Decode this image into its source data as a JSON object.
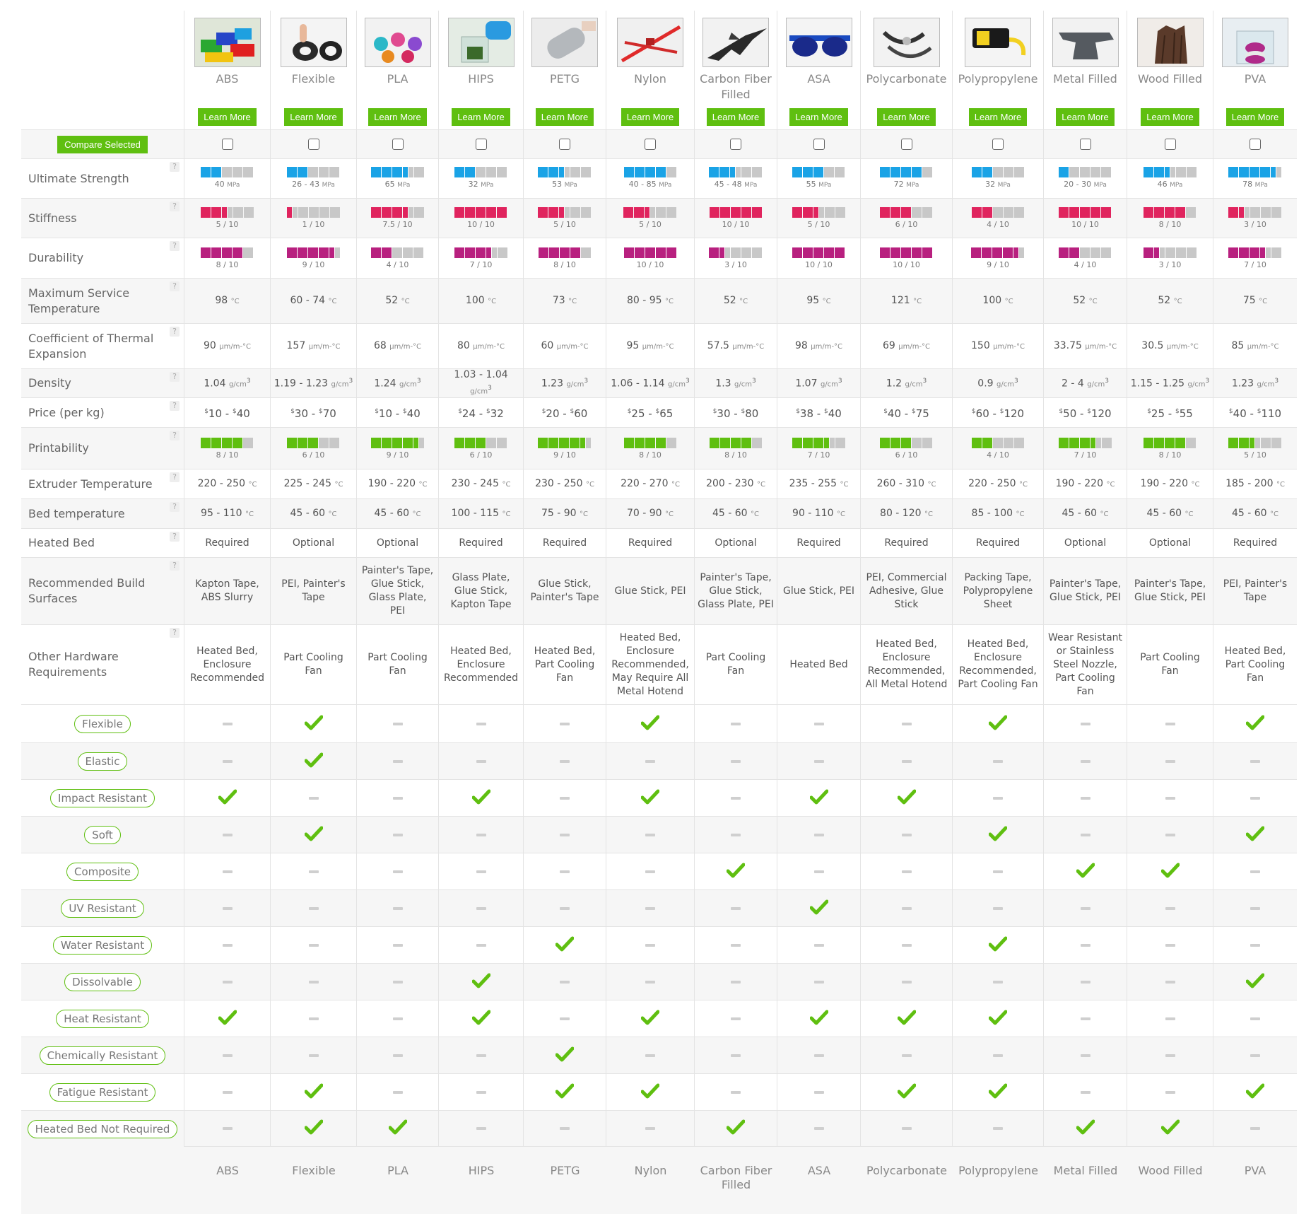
{
  "compare_label": "Compare Selected",
  "learn_more_label": "Learn More",
  "colors": {
    "strength": "#1aa3e6",
    "stiffness": "#e0245e",
    "durability": "#b8207f",
    "printability": "#5fbf10",
    "empty": "#c8c8c8",
    "accent": "#5fbf10"
  },
  "materials": [
    {
      "name": "ABS",
      "icon": "abs-blocks-icon",
      "strength": "40",
      "stiff": "5 / 10",
      "dur": "8 / 10",
      "maxtemp": "98",
      "cte": "90",
      "density": "1.04",
      "price_lo": "10",
      "price_hi": "40",
      "print": "8 / 10",
      "extruder": "220 - 250",
      "bed": "95 - 110",
      "heated": "Required",
      "surfaces": "Kapton Tape, ABS Slurry",
      "hardware": "Heated Bed, Enclosure Recommended",
      "props": [
        0,
        0,
        1,
        0,
        0,
        0,
        0,
        0,
        1,
        0,
        0,
        0
      ]
    },
    {
      "name": "Flexible",
      "icon": "flexible-ring-icon",
      "strength": "26 - 43",
      "stiff": "1 / 10",
      "dur": "9 / 10",
      "maxtemp": "60 - 74",
      "cte": "157",
      "density": "1.19 - 1.23",
      "price_lo": "30",
      "price_hi": "70",
      "print": "6 / 10",
      "extruder": "225 - 245",
      "bed": "45 - 60",
      "heated": "Optional",
      "surfaces": "PEI, Painter's Tape",
      "hardware": "Part Cooling Fan",
      "props": [
        1,
        1,
        0,
        1,
        0,
        0,
        0,
        0,
        0,
        0,
        1,
        1
      ]
    },
    {
      "name": "PLA",
      "icon": "pla-figures-icon",
      "strength": "65",
      "stiff": "7.5 / 10",
      "dur": "4 / 10",
      "maxtemp": "52",
      "cte": "68",
      "density": "1.24",
      "price_lo": "10",
      "price_hi": "40",
      "print": "9 / 10",
      "extruder": "190 - 220",
      "bed": "45 - 60",
      "heated": "Optional",
      "surfaces": "Painter's Tape, Glue Stick, Glass Plate, PEI",
      "hardware": "Part Cooling Fan",
      "props": [
        0,
        0,
        0,
        0,
        0,
        0,
        0,
        0,
        0,
        0,
        0,
        1
      ]
    },
    {
      "name": "HIPS",
      "icon": "hips-dissolve-icon",
      "strength": "32",
      "stiff": "10 / 10",
      "dur": "7 / 10",
      "maxtemp": "100",
      "cte": "80",
      "density": "1.03 - 1.04",
      "price_lo": "24",
      "price_hi": "32",
      "print": "6 / 10",
      "extruder": "230 - 245",
      "bed": "100 - 115",
      "heated": "Required",
      "surfaces": "Glass Plate, Glue Stick, Kapton Tape",
      "hardware": "Heated Bed, Enclosure Recommended",
      "props": [
        0,
        0,
        1,
        0,
        0,
        0,
        0,
        1,
        1,
        0,
        0,
        0
      ]
    },
    {
      "name": "PETG",
      "icon": "petg-bottle-icon",
      "strength": "53",
      "stiff": "5 / 10",
      "dur": "8 / 10",
      "maxtemp": "73",
      "cte": "60",
      "density": "1.23",
      "price_lo": "20",
      "price_hi": "60",
      "print": "9 / 10",
      "extruder": "230 - 250",
      "bed": "75 - 90",
      "heated": "Required",
      "surfaces": "Glue Stick, Painter's Tape",
      "hardware": "Heated Bed, Part Cooling Fan",
      "props": [
        0,
        0,
        0,
        0,
        0,
        0,
        1,
        0,
        0,
        1,
        1,
        0
      ]
    },
    {
      "name": "Nylon",
      "icon": "nylon-tie-icon",
      "strength": "40 - 85",
      "stiff": "5 / 10",
      "dur": "10 / 10",
      "maxtemp": "80 - 95",
      "cte": "95",
      "density": "1.06 - 1.14",
      "price_lo": "25",
      "price_hi": "65",
      "print": "8 / 10",
      "extruder": "220 - 270",
      "bed": "70 - 90",
      "heated": "Required",
      "surfaces": "Glue Stick, PEI",
      "hardware": "Heated Bed, Enclosure Recommended, May Require All Metal Hotend",
      "props": [
        1,
        0,
        1,
        0,
        0,
        0,
        0,
        0,
        1,
        0,
        1,
        0
      ]
    },
    {
      "name": "Carbon Fiber Filled",
      "icon": "carbon-jet-icon",
      "strength": "45 - 48",
      "stiff": "10 / 10",
      "dur": "3 / 10",
      "maxtemp": "52",
      "cte": "57.5",
      "density": "1.3",
      "price_lo": "30",
      "price_hi": "80",
      "print": "8 / 10",
      "extruder": "200 - 230",
      "bed": "45 - 60",
      "heated": "Optional",
      "surfaces": "Painter's Tape, Glue Stick, Glass Plate, PEI",
      "hardware": "Part Cooling Fan",
      "props": [
        0,
        0,
        0,
        0,
        1,
        0,
        0,
        0,
        0,
        0,
        0,
        1
      ]
    },
    {
      "name": "ASA",
      "icon": "asa-sunglasses-icon",
      "strength": "55",
      "stiff": "5 / 10",
      "dur": "10 / 10",
      "maxtemp": "95",
      "cte": "98",
      "density": "1.07",
      "price_lo": "38",
      "price_hi": "40",
      "print": "7 / 10",
      "extruder": "235 - 255",
      "bed": "90 - 110",
      "heated": "Required",
      "surfaces": "Glue Stick, PEI",
      "hardware": "Heated Bed",
      "props": [
        0,
        0,
        1,
        0,
        0,
        1,
        0,
        0,
        1,
        0,
        0,
        0
      ]
    },
    {
      "name": "Polycarbonate",
      "icon": "polycarbonate-clip-icon",
      "strength": "72",
      "stiff": "6 / 10",
      "dur": "10 / 10",
      "maxtemp": "121",
      "cte": "69",
      "density": "1.2",
      "price_lo": "40",
      "price_hi": "75",
      "print": "6 / 10",
      "extruder": "260 - 310",
      "bed": "80 - 120",
      "heated": "Required",
      "surfaces": "PEI, Commercial Adhesive, Glue Stick",
      "hardware": "Heated Bed, Enclosure Recommended, All Metal Hotend",
      "props": [
        0,
        0,
        1,
        0,
        0,
        0,
        0,
        0,
        1,
        0,
        1,
        0
      ]
    },
    {
      "name": "Polypropylene",
      "icon": "polypropylene-hinge-icon",
      "strength": "32",
      "stiff": "4 / 10",
      "dur": "9 / 10",
      "maxtemp": "100",
      "cte": "150",
      "density": "0.9",
      "price_lo": "60",
      "price_hi": "120",
      "print": "4 / 10",
      "extruder": "220 - 250",
      "bed": "85 - 100",
      "heated": "Required",
      "surfaces": "Packing Tape, Polypropylene Sheet",
      "hardware": "Heated Bed, Enclosure Recommended, Part Cooling Fan",
      "props": [
        1,
        0,
        0,
        1,
        0,
        0,
        1,
        0,
        1,
        0,
        1,
        0
      ]
    },
    {
      "name": "Metal Filled",
      "icon": "metal-anvil-icon",
      "strength": "20 - 30",
      "stiff": "10 / 10",
      "dur": "4 / 10",
      "maxtemp": "52",
      "cte": "33.75",
      "density": "2 - 4",
      "price_lo": "50",
      "price_hi": "120",
      "print": "7 / 10",
      "extruder": "190 - 220",
      "bed": "45 - 60",
      "heated": "Optional",
      "surfaces": "Painter's Tape, Glue Stick, PEI",
      "hardware": "Wear Resistant or Stainless Steel Nozzle, Part Cooling Fan",
      "props": [
        0,
        0,
        0,
        0,
        1,
        0,
        0,
        0,
        0,
        0,
        0,
        1
      ]
    },
    {
      "name": "Wood Filled",
      "icon": "wood-stump-icon",
      "strength": "46",
      "stiff": "8 / 10",
      "dur": "3 / 10",
      "maxtemp": "52",
      "cte": "30.5",
      "density": "1.15 - 1.25",
      "price_lo": "25",
      "price_hi": "55",
      "print": "8 / 10",
      "extruder": "190 - 220",
      "bed": "45 - 60",
      "heated": "Optional",
      "surfaces": "Painter's Tape, Glue Stick, PEI",
      "hardware": "Part Cooling Fan",
      "props": [
        0,
        0,
        0,
        0,
        1,
        0,
        0,
        0,
        0,
        0,
        0,
        1
      ]
    },
    {
      "name": "PVA",
      "icon": "pva-dissolve-icon",
      "strength": "78",
      "stiff": "3 / 10",
      "dur": "7 / 10",
      "maxtemp": "75",
      "cte": "85",
      "density": "1.23",
      "price_lo": "40",
      "price_hi": "110",
      "print": "5 / 10",
      "extruder": "185 - 200",
      "bed": "45 - 60",
      "heated": "Required",
      "surfaces": "PEI, Painter's Tape",
      "hardware": "Heated Bed, Part Cooling Fan",
      "props": [
        1,
        0,
        0,
        1,
        0,
        0,
        0,
        1,
        0,
        0,
        1,
        0
      ]
    }
  ],
  "bar_fill": {
    "strength": [
      4.5,
      4,
      7.5,
      4,
      5.5,
      8,
      5,
      6.5,
      8.5,
      4,
      2.5,
      5.5,
      9.5
    ],
    "stiffness": [
      5,
      1,
      7.5,
      10,
      5,
      5,
      10,
      5,
      6,
      4,
      10,
      8,
      3
    ],
    "durability": [
      8,
      9,
      4,
      7,
      8,
      10,
      3,
      10,
      10,
      9,
      4,
      3,
      7
    ],
    "printability": [
      8,
      6,
      9,
      6,
      9,
      8,
      8,
      7,
      6,
      4,
      7,
      8,
      5
    ]
  },
  "rows": {
    "strength": "Ultimate Strength",
    "stiffness": "Stiffness",
    "durability": "Durability",
    "maxtemp": "Maximum Service Temperature",
    "cte": "Coefficient of Thermal Expansion",
    "density": "Density",
    "price": "Price (per kg)",
    "printability": "Printability",
    "extruder": "Extruder Temperature",
    "bed": "Bed temperature",
    "heated": "Heated Bed",
    "surfaces": "Recommended Build Surfaces",
    "hardware": "Other Hardware Requirements"
  },
  "units": {
    "mpa": "MPa",
    "celsius": "°C",
    "cte": "μm/m-°C",
    "density": "g/cm",
    "density_exp": "3",
    "currency": "$",
    "score_suffix": ""
  },
  "help_glyph": "?",
  "properties": [
    "Flexible",
    "Elastic",
    "Impact Resistant",
    "Soft",
    "Composite",
    "UV Resistant",
    "Water Resistant",
    "Dissolvable",
    "Heat Resistant",
    "Chemically Resistant",
    "Fatigue Resistant",
    "Heated Bed Not Required"
  ],
  "footer_names": [
    "ABS",
    "Flexible",
    "PLA",
    "HIPS",
    "PETG",
    "Nylon",
    "Carbon Fiber Filled",
    "ASA",
    "Polycarbonate",
    "Polypropylene",
    "Metal Filled",
    "Wood Filled",
    "PVA"
  ]
}
